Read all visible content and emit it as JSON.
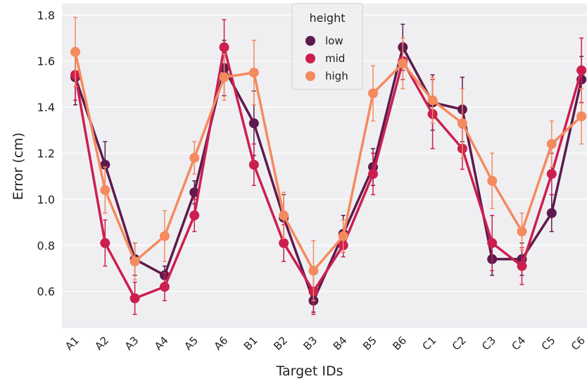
{
  "chart_data": {
    "type": "line",
    "x_label": "Target IDs",
    "y_label": "Error (cm)",
    "categories": [
      "A1",
      "A2",
      "A3",
      "A4",
      "A5",
      "A6",
      "B1",
      "B2",
      "B3",
      "B4",
      "B5",
      "B6",
      "C1",
      "C2",
      "C3",
      "C4",
      "C5",
      "C6"
    ],
    "ylim": [
      0.44,
      1.85
    ],
    "yticks": [
      0.6,
      0.8,
      {
        "value": 1,
        "label": "1.0"
      },
      1.2,
      1.4,
      1.6,
      1.8
    ],
    "grid": true,
    "legend_title": "height",
    "legend_position": "top-center",
    "series": [
      {
        "name": "low",
        "color": "#5e1a4e",
        "values": [
          1.53,
          1.15,
          0.74,
          0.67,
          1.03,
          1.57,
          1.33,
          0.92,
          0.56,
          0.85,
          1.14,
          1.66,
          1.42,
          1.39,
          0.74,
          0.74,
          0.94,
          1.52
        ],
        "errors": [
          0.12,
          0.1,
          0.07,
          0.04,
          0.05,
          0.12,
          0.14,
          0.1,
          0.05,
          0.08,
          0.08,
          0.1,
          0.12,
          0.14,
          0.07,
          0.07,
          0.08,
          0.1
        ]
      },
      {
        "name": "mid",
        "color": "#cc1f4f",
        "values": [
          1.54,
          0.81,
          0.57,
          0.62,
          0.93,
          1.66,
          1.15,
          0.81,
          0.6,
          0.8,
          1.11,
          1.6,
          1.37,
          1.22,
          0.81,
          0.71,
          1.11,
          1.56
        ],
        "errors": [
          0.11,
          0.1,
          0.07,
          0.06,
          0.07,
          0.12,
          0.09,
          0.08,
          0.1,
          0.05,
          0.09,
          0.08,
          0.15,
          0.09,
          0.12,
          0.08,
          0.09,
          0.14
        ]
      },
      {
        "name": "high",
        "color": "#f58a5f",
        "values": [
          1.64,
          1.04,
          0.73,
          0.84,
          1.18,
          1.53,
          1.55,
          0.93,
          0.69,
          0.84,
          1.46,
          1.59,
          1.43,
          1.33,
          1.08,
          0.86,
          1.24,
          1.36
        ],
        "errors": [
          0.15,
          0.1,
          0.08,
          0.11,
          0.07,
          0.1,
          0.14,
          0.1,
          0.13,
          0.07,
          0.12,
          0.11,
          0.1,
          0.15,
          0.12,
          0.08,
          0.1,
          0.12
        ]
      }
    ]
  }
}
